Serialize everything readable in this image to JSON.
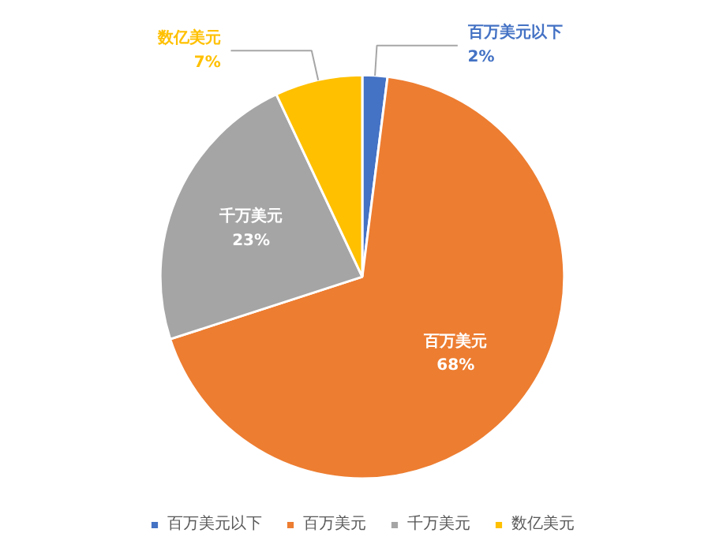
{
  "chart_data": {
    "type": "pie",
    "categories": [
      "百万美元以下",
      "百万美元",
      "千万美元",
      "数亿美元"
    ],
    "values": [
      2,
      68,
      23,
      7
    ],
    "colors": [
      "#4472c4",
      "#ed7d31",
      "#a5a5a5",
      "#ffc000"
    ],
    "value_labels": [
      "2%",
      "68%",
      "23%",
      "7%"
    ],
    "legend": "bottom"
  }
}
